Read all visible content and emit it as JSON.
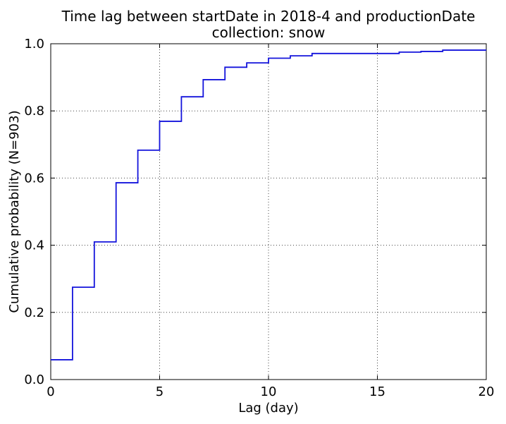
{
  "figure": {
    "background": "#ffffff",
    "axes_color": "#000000",
    "grid_color": "#444444",
    "text_color": "#000000"
  },
  "chart_data": {
    "type": "line",
    "line_style": "step-post",
    "title": "Time lag between startDate in 2018-4 and productionDate",
    "subtitle": "collection: snow",
    "xlabel": "Lag (day)",
    "ylabel": "Cumulative probability (N=903)",
    "sample_size": 903,
    "xlim": [
      0,
      20
    ],
    "ylim": [
      0.0,
      1.0
    ],
    "xticks": [
      0,
      5,
      10,
      15,
      20
    ],
    "xtick_labels": [
      "0",
      "5",
      "10",
      "15",
      "20"
    ],
    "yticks": [
      0.0,
      0.2,
      0.4,
      0.6,
      0.8,
      1.0
    ],
    "ytick_labels": [
      "0.0",
      "0.2",
      "0.4",
      "0.6",
      "0.8",
      "1.0"
    ],
    "grid": true,
    "grid_linestyle": "dotted",
    "legend": null,
    "line_color": "#1414dc",
    "line_width": 1.8,
    "x": [
      0,
      1,
      2,
      3,
      4,
      5,
      6,
      7,
      8,
      9,
      10,
      11,
      12,
      13,
      14,
      15,
      16,
      17,
      18,
      19
    ],
    "cdf": [
      0.059,
      0.275,
      0.41,
      0.586,
      0.683,
      0.769,
      0.842,
      0.893,
      0.93,
      0.943,
      0.957,
      0.964,
      0.971,
      0.971,
      0.971,
      0.971,
      0.975,
      0.977,
      0.981,
      0.981
    ]
  }
}
